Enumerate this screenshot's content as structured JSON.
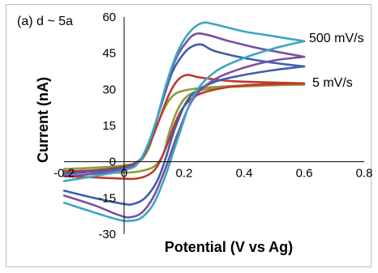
{
  "chart_data": {
    "type": "line",
    "panel_label": "(a) d ~ 5a",
    "xlabel": "Potential (V vs Ag)",
    "ylabel": "Current (nA)",
    "xlim": [
      -0.2,
      0.8
    ],
    "ylim": [
      -30,
      60
    ],
    "xticks": [
      "-0.2",
      "0",
      "0.2",
      "0.4",
      "0.6",
      "0.8"
    ],
    "yticks": [
      "-30",
      "-15",
      "0",
      "15",
      "30",
      "45",
      "60"
    ],
    "annotations": [
      "500 mV/s",
      "5 mV/s"
    ],
    "grid": false,
    "series": [
      {
        "color": "#8c9d3b",
        "forward": [
          [
            -0.2,
            -3
          ],
          [
            -0.1,
            -2.5
          ],
          [
            0,
            -1.5
          ],
          [
            0.05,
            0
          ],
          [
            0.08,
            5
          ],
          [
            0.1,
            12
          ],
          [
            0.13,
            21
          ],
          [
            0.16,
            27
          ],
          [
            0.2,
            29.5
          ],
          [
            0.3,
            31
          ],
          [
            0.45,
            31.8
          ],
          [
            0.6,
            32
          ]
        ],
        "reverse": [
          [
            0.6,
            32
          ],
          [
            0.45,
            31.5
          ],
          [
            0.3,
            30.5
          ],
          [
            0.22,
            28
          ],
          [
            0.18,
            22
          ],
          [
            0.15,
            12
          ],
          [
            0.13,
            3
          ],
          [
            0.1,
            -2
          ],
          [
            0.05,
            -4
          ],
          [
            0,
            -4.5
          ],
          [
            -0.1,
            -4.2
          ],
          [
            -0.2,
            -4
          ]
        ]
      },
      {
        "color": "#c0392b",
        "forward": [
          [
            -0.2,
            -4
          ],
          [
            -0.1,
            -3.5
          ],
          [
            0,
            -2
          ],
          [
            0.05,
            0.5
          ],
          [
            0.08,
            6
          ],
          [
            0.11,
            15
          ],
          [
            0.15,
            28
          ],
          [
            0.18,
            34
          ],
          [
            0.21,
            36
          ],
          [
            0.25,
            35
          ],
          [
            0.35,
            33.5
          ],
          [
            0.45,
            33
          ],
          [
            0.6,
            32.5
          ]
        ],
        "reverse": [
          [
            0.6,
            32.5
          ],
          [
            0.45,
            32
          ],
          [
            0.35,
            31
          ],
          [
            0.25,
            28
          ],
          [
            0.2,
            23
          ],
          [
            0.17,
            16
          ],
          [
            0.14,
            6
          ],
          [
            0.11,
            -2
          ],
          [
            0.08,
            -5.5
          ],
          [
            0.04,
            -7
          ],
          [
            0,
            -7
          ],
          [
            -0.1,
            -6.5
          ],
          [
            -0.2,
            -6
          ]
        ]
      },
      {
        "color": "#3d5fae",
        "forward": [
          [
            -0.2,
            -5
          ],
          [
            -0.1,
            -4
          ],
          [
            0,
            -2.5
          ],
          [
            0.05,
            0
          ],
          [
            0.08,
            7
          ],
          [
            0.12,
            22
          ],
          [
            0.16,
            37
          ],
          [
            0.2,
            45
          ],
          [
            0.23,
            48
          ],
          [
            0.26,
            48.5
          ],
          [
            0.3,
            46
          ],
          [
            0.4,
            43
          ],
          [
            0.5,
            41
          ],
          [
            0.6,
            39.5
          ]
        ],
        "reverse": [
          [
            0.6,
            39.5
          ],
          [
            0.5,
            38
          ],
          [
            0.4,
            36
          ],
          [
            0.3,
            33
          ],
          [
            0.22,
            27
          ],
          [
            0.17,
            14
          ],
          [
            0.14,
            2
          ],
          [
            0.11,
            -8
          ],
          [
            0.07,
            -15
          ],
          [
            0.03,
            -17.5
          ],
          [
            0,
            -17.5
          ],
          [
            -0.1,
            -15
          ],
          [
            -0.2,
            -12
          ]
        ]
      },
      {
        "color": "#7b4fa0",
        "forward": [
          [
            -0.2,
            -6
          ],
          [
            -0.1,
            -5
          ],
          [
            0,
            -3
          ],
          [
            0.05,
            0
          ],
          [
            0.09,
            10
          ],
          [
            0.13,
            27
          ],
          [
            0.17,
            42
          ],
          [
            0.21,
            50
          ],
          [
            0.24,
            53
          ],
          [
            0.28,
            52.5
          ],
          [
            0.35,
            50
          ],
          [
            0.45,
            47
          ],
          [
            0.6,
            43.5
          ]
        ],
        "reverse": [
          [
            0.6,
            43.5
          ],
          [
            0.5,
            42
          ],
          [
            0.4,
            39
          ],
          [
            0.3,
            34
          ],
          [
            0.23,
            26
          ],
          [
            0.18,
            12
          ],
          [
            0.14,
            -2
          ],
          [
            0.1,
            -14
          ],
          [
            0.06,
            -21
          ],
          [
            0.02,
            -23
          ],
          [
            -0.02,
            -22
          ],
          [
            -0.1,
            -18
          ],
          [
            -0.2,
            -14
          ]
        ]
      },
      {
        "color": "#3aa7bf",
        "forward": [
          [
            -0.2,
            -8
          ],
          [
            -0.1,
            -6
          ],
          [
            0,
            -3.5
          ],
          [
            0.05,
            0
          ],
          [
            0.1,
            14
          ],
          [
            0.14,
            32
          ],
          [
            0.18,
            46
          ],
          [
            0.22,
            54
          ],
          [
            0.26,
            57.5
          ],
          [
            0.3,
            57
          ],
          [
            0.4,
            54
          ],
          [
            0.5,
            52
          ],
          [
            0.6,
            50
          ]
        ],
        "reverse": [
          [
            0.6,
            50
          ],
          [
            0.5,
            47
          ],
          [
            0.4,
            43
          ],
          [
            0.3,
            37
          ],
          [
            0.23,
            27
          ],
          [
            0.18,
            10
          ],
          [
            0.14,
            -5
          ],
          [
            0.1,
            -17
          ],
          [
            0.06,
            -23
          ],
          [
            0.02,
            -24.5
          ],
          [
            -0.02,
            -24
          ],
          [
            -0.1,
            -21
          ],
          [
            -0.2,
            -17
          ]
        ]
      }
    ]
  }
}
